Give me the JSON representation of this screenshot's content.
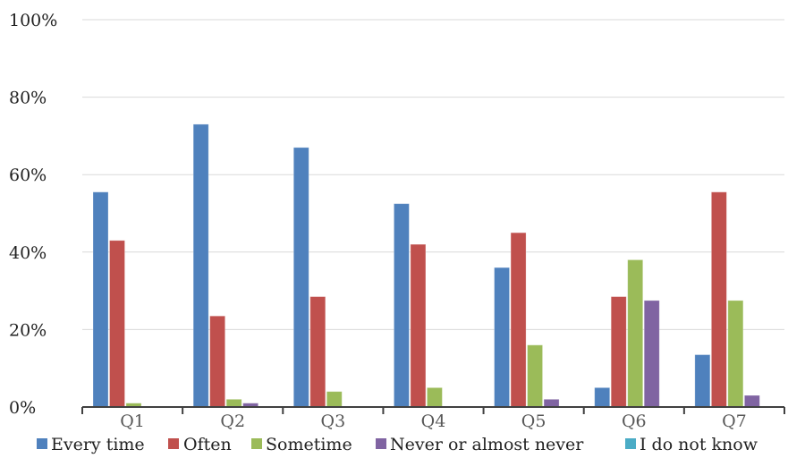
{
  "chart_data": {
    "type": "bar",
    "categories": [
      "Q1",
      "Q2",
      "Q3",
      "Q4",
      "Q5",
      "Q6",
      "Q7"
    ],
    "series": [
      {
        "name": "Every time",
        "color": "#4f81bd",
        "values": [
          55.5,
          73,
          67,
          52.5,
          36,
          5,
          13.5
        ]
      },
      {
        "name": "Often",
        "color": "#c0504d",
        "values": [
          43,
          23.5,
          28.5,
          42,
          45,
          28.5,
          55.5
        ]
      },
      {
        "name": "Sometime",
        "color": "#9bbb59",
        "values": [
          1,
          2,
          4,
          5,
          16,
          38,
          27.5
        ]
      },
      {
        "name": "Never or almost never",
        "color": "#8064a2",
        "values": [
          0,
          1,
          0,
          0,
          2,
          27.5,
          3
        ]
      },
      {
        "name": "I do not know",
        "color": "#4bacc6",
        "values": [
          0,
          0,
          0,
          0,
          0,
          0,
          0
        ]
      }
    ],
    "yticks": [
      "0%",
      "20%",
      "40%",
      "60%",
      "80%",
      "100%"
    ],
    "ylim": [
      0,
      100
    ],
    "y_unit": "%",
    "grid": true,
    "legend_position": "bottom",
    "title": "",
    "xlabel": "",
    "ylabel": ""
  }
}
